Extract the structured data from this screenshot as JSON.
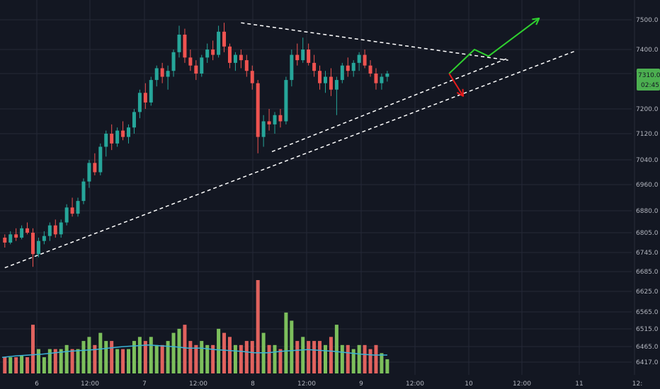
{
  "chart_data": {
    "type": "candlestick",
    "y_axis_labels": [
      "7500.0",
      "7400.0",
      "7310.0",
      "7200.0",
      "7120.0",
      "7040.0",
      "6960.0",
      "6880.0",
      "6805.0",
      "6745.0",
      "6685.0",
      "6625.0",
      "6565.0",
      "6515.0",
      "6465.0",
      "6417.0"
    ],
    "x_axis_labels": [
      "6",
      "12:00",
      "7",
      "12:00",
      "8",
      "12:00",
      "9",
      "12:00",
      "10",
      "12:00",
      "11",
      "12:"
    ],
    "price_axis": {
      "ticks": [
        7500.0,
        7400.0,
        7310.0,
        7200.0,
        7120.0,
        7040.0,
        6960.0,
        6880.0,
        6805.0,
        6745.0,
        6685.0
      ],
      "range": [
        6660,
        7560
      ]
    },
    "volume_axis_ticks": [
      6625.0,
      6565.0,
      6515.0,
      6465.0,
      6417.0
    ],
    "last_price": "7310.0",
    "countdown": "02:45",
    "colors": {
      "background": "#131722",
      "grid": "#242937",
      "up": "#26a69a",
      "down": "#ef5350",
      "volume_up": "#7cbf5c",
      "volume_down": "#e0625e",
      "volume_ma": "#3bb3d6",
      "trendline": "#ffffff",
      "arrow_up": "#2fd12f",
      "arrow_down": "#e81c1c",
      "badge": "#4caf50"
    },
    "candles": [
      [
        6790,
        6800,
        6760,
        6775
      ],
      [
        6775,
        6810,
        6770,
        6800
      ],
      [
        6800,
        6820,
        6780,
        6790
      ],
      [
        6790,
        6830,
        6785,
        6820
      ],
      [
        6820,
        6840,
        6800,
        6805
      ],
      [
        6805,
        6820,
        6700,
        6740
      ],
      [
        6740,
        6790,
        6730,
        6780
      ],
      [
        6780,
        6810,
        6770,
        6795
      ],
      [
        6795,
        6840,
        6780,
        6830
      ],
      [
        6830,
        6850,
        6790,
        6800
      ],
      [
        6800,
        6850,
        6790,
        6840
      ],
      [
        6840,
        6900,
        6830,
        6890
      ],
      [
        6890,
        6920,
        6860,
        6870
      ],
      [
        6870,
        6920,
        6860,
        6910
      ],
      [
        6910,
        6980,
        6900,
        6970
      ],
      [
        6970,
        7040,
        6950,
        7030
      ],
      [
        7030,
        7060,
        6990,
        7000
      ],
      [
        7000,
        7090,
        6990,
        7080
      ],
      [
        7080,
        7130,
        7050,
        7120
      ],
      [
        7120,
        7150,
        7070,
        7090
      ],
      [
        7090,
        7140,
        7080,
        7130
      ],
      [
        7130,
        7160,
        7100,
        7110
      ],
      [
        7110,
        7150,
        7090,
        7140
      ],
      [
        7140,
        7200,
        7120,
        7190
      ],
      [
        7190,
        7260,
        7170,
        7250
      ],
      [
        7250,
        7280,
        7200,
        7220
      ],
      [
        7220,
        7300,
        7210,
        7290
      ],
      [
        7290,
        7340,
        7270,
        7330
      ],
      [
        7330,
        7350,
        7280,
        7300
      ],
      [
        7300,
        7340,
        7260,
        7320
      ],
      [
        7320,
        7400,
        7300,
        7390
      ],
      [
        7390,
        7480,
        7370,
        7450
      ],
      [
        7450,
        7470,
        7350,
        7370
      ],
      [
        7370,
        7400,
        7320,
        7340
      ],
      [
        7340,
        7360,
        7290,
        7310
      ],
      [
        7310,
        7380,
        7300,
        7370
      ],
      [
        7370,
        7420,
        7350,
        7400
      ],
      [
        7400,
        7430,
        7360,
        7380
      ],
      [
        7380,
        7480,
        7370,
        7460
      ],
      [
        7460,
        7490,
        7390,
        7410
      ],
      [
        7410,
        7420,
        7330,
        7350
      ],
      [
        7350,
        7390,
        7320,
        7380
      ],
      [
        7380,
        7400,
        7330,
        7360
      ],
      [
        7360,
        7380,
        7300,
        7320
      ],
      [
        7320,
        7340,
        7260,
        7280
      ],
      [
        7280,
        7290,
        7060,
        7110
      ],
      [
        7110,
        7180,
        7080,
        7160
      ],
      [
        7160,
        7200,
        7130,
        7150
      ],
      [
        7150,
        7190,
        7120,
        7180
      ],
      [
        7180,
        7200,
        7140,
        7160
      ],
      [
        7160,
        7300,
        7150,
        7290
      ],
      [
        7290,
        7400,
        7270,
        7380
      ],
      [
        7380,
        7420,
        7340,
        7360
      ],
      [
        7360,
        7440,
        7350,
        7400
      ],
      [
        7400,
        7420,
        7340,
        7350
      ],
      [
        7350,
        7380,
        7300,
        7320
      ],
      [
        7320,
        7340,
        7260,
        7280
      ],
      [
        7280,
        7320,
        7250,
        7300
      ],
      [
        7300,
        7330,
        7240,
        7260
      ],
      [
        7260,
        7300,
        7180,
        7290
      ],
      [
        7290,
        7350,
        7280,
        7340
      ],
      [
        7340,
        7370,
        7300,
        7320
      ],
      [
        7320,
        7360,
        7300,
        7350
      ],
      [
        7350,
        7390,
        7320,
        7380
      ],
      [
        7380,
        7400,
        7330,
        7340
      ],
      [
        7340,
        7360,
        7300,
        7310
      ],
      [
        7310,
        7330,
        7260,
        7280
      ],
      [
        7280,
        7310,
        7260,
        7300
      ],
      [
        7300,
        7320,
        7285,
        7310
      ]
    ],
    "volume_ma": [
      0.35,
      0.38,
      0.4,
      0.42,
      0.45,
      0.48,
      0.5,
      0.52,
      0.55,
      0.58,
      0.6,
      0.62,
      0.6,
      0.58,
      0.55,
      0.55,
      0.52,
      0.5,
      0.48,
      0.45,
      0.45,
      0.48,
      0.5,
      0.52,
      0.5,
      0.48,
      0.45,
      0.42,
      0.4,
      0.4
    ],
    "trendlines": [
      {
        "style": "dashed",
        "from": [
          0,
          6697
        ],
        "to": [
          101.5,
          7395
        ]
      },
      {
        "style": "dashed",
        "from": [
          47.5,
          7065
        ],
        "to": [
          89.5,
          7368
        ]
      },
      {
        "style": "dashed",
        "from": [
          42,
          7490
        ],
        "to": [
          89.5,
          7360
        ]
      }
    ],
    "arrows": [
      {
        "color": "up",
        "points": [
          [
            79,
            7310
          ],
          [
            83.5,
            7400
          ],
          [
            86,
            7375
          ],
          [
            95,
            7505
          ]
        ]
      },
      {
        "color": "down",
        "points": [
          [
            79,
            7310
          ],
          [
            81.5,
            7240
          ]
        ]
      }
    ]
  }
}
